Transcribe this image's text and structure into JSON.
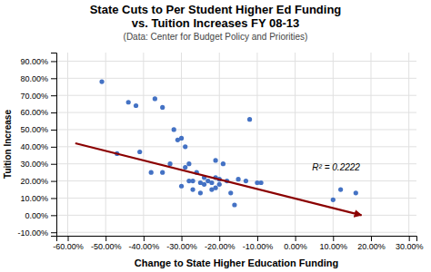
{
  "chart_data": {
    "type": "scatter",
    "title": [
      "State Cuts to Per Student Higher Ed Funding",
      "vs. Tuition Increases FY 08-13"
    ],
    "subtitle": "(Data: Center for Budget Policy and Priorities)",
    "xlabel": "Change to State Higher Education Funding",
    "ylabel": "Tuition Increase",
    "x": [
      -0.51,
      -0.47,
      -0.44,
      -0.42,
      -0.41,
      -0.38,
      -0.37,
      -0.35,
      -0.35,
      -0.33,
      -0.32,
      -0.31,
      -0.3,
      -0.3,
      -0.29,
      -0.29,
      -0.28,
      -0.28,
      -0.27,
      -0.27,
      -0.26,
      -0.25,
      -0.25,
      -0.24,
      -0.24,
      -0.23,
      -0.22,
      -0.22,
      -0.21,
      -0.21,
      -0.21,
      -0.2,
      -0.2,
      -0.19,
      -0.18,
      -0.17,
      -0.16,
      -0.15,
      -0.13,
      -0.12,
      -0.1,
      -0.09,
      0.1,
      0.12,
      0.16
    ],
    "values": [
      0.78,
      0.36,
      0.66,
      0.64,
      0.37,
      0.25,
      0.68,
      0.63,
      0.25,
      0.3,
      0.5,
      0.44,
      0.45,
      0.17,
      0.28,
      0.4,
      0.2,
      0.3,
      0.15,
      0.2,
      0.25,
      0.13,
      0.19,
      0.18,
      0.22,
      0.2,
      0.19,
      0.15,
      0.22,
      0.32,
      0.16,
      0.18,
      0.21,
      0.3,
      0.2,
      0.13,
      0.06,
      0.21,
      0.2,
      0.56,
      0.19,
      0.19,
      0.09,
      0.15,
      0.13
    ],
    "color": "#4472C4",
    "trendline": {
      "x": [
        -0.58,
        0.175
      ],
      "y": [
        0.42,
        0.0
      ],
      "color": "#8B0000"
    },
    "annotations": [
      {
        "text": "R² = 0.2222",
        "x": 0.045,
        "y": 0.28
      }
    ],
    "xlim": [
      -0.63,
      0.32
    ],
    "ylim": [
      -0.12,
      0.95
    ],
    "xticks": [
      {
        "value": -0.6,
        "label": "-60.00%"
      },
      {
        "value": -0.5,
        "label": "-50.00%"
      },
      {
        "value": -0.4,
        "label": "-40.00%"
      },
      {
        "value": -0.3,
        "label": "-30.00%"
      },
      {
        "value": -0.2,
        "label": "-20.00%"
      },
      {
        "value": -0.1,
        "label": "-10.00%"
      },
      {
        "value": 0.0,
        "label": "0.00%"
      },
      {
        "value": 0.1,
        "label": "10.00%"
      },
      {
        "value": 0.2,
        "label": "20.00%"
      },
      {
        "value": 0.3,
        "label": "30.00%"
      }
    ],
    "yticks": [
      {
        "value": -0.1,
        "label": "-10.00%"
      },
      {
        "value": 0.0,
        "label": "0.00%"
      },
      {
        "value": 0.1,
        "label": "10.00%"
      },
      {
        "value": 0.2,
        "label": "20.00%"
      },
      {
        "value": 0.3,
        "label": "30.00%"
      },
      {
        "value": 0.4,
        "label": "40.00%"
      },
      {
        "value": 0.5,
        "label": "50.00%"
      },
      {
        "value": 0.6,
        "label": "60.00%"
      },
      {
        "value": 0.7,
        "label": "70.00%"
      },
      {
        "value": 0.8,
        "label": "80.00%"
      },
      {
        "value": 0.9,
        "label": "90.00%"
      }
    ],
    "grid": true
  }
}
